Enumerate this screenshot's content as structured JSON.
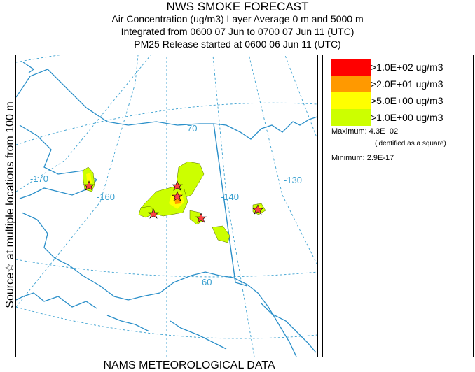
{
  "title": "NWS SMOKE FORECAST",
  "subtitle_lines": [
    "Air Concentration (ug/m3) Layer Average    0 m and  5000 m",
    "Integrated from 0600 07 Jun to 0700 07 Jun 11 (UTC)",
    "PM25 Release started at 0600 06 Jun 11 (UTC)"
  ],
  "side_label": "Source☆   at multiple locations   from  100 m",
  "bottom_label": "NAMS METEOROLOGICAL DATA",
  "map": {
    "lon_labels": [
      "-170",
      "-160",
      "-140",
      "-130"
    ],
    "lat_labels": [
      "70",
      "60"
    ],
    "colors": {
      "coast": "#2a8fc9",
      "grid": "#3aa0d0",
      "plume_low": "#ccff00",
      "plume_mid": "#ffff00",
      "plume_high": "#ff9900",
      "plume_top": "#ff0000"
    }
  },
  "legend": {
    "entries": [
      {
        "label": ">1.0E+02 ug/m3",
        "color": "#ff0000"
      },
      {
        "label": ">2.0E+01 ug/m3",
        "color": "#ff9900"
      },
      {
        "label": ">5.0E+00 ug/m3",
        "color": "#ffff00"
      },
      {
        "label": ">1.0E+00 ug/m3",
        "color": "#ccff00"
      }
    ],
    "maximum": "Maximum: 4.3E+02",
    "maximum_note": "(identified as a square)",
    "minimum": "Minimum: 2.9E-17"
  }
}
